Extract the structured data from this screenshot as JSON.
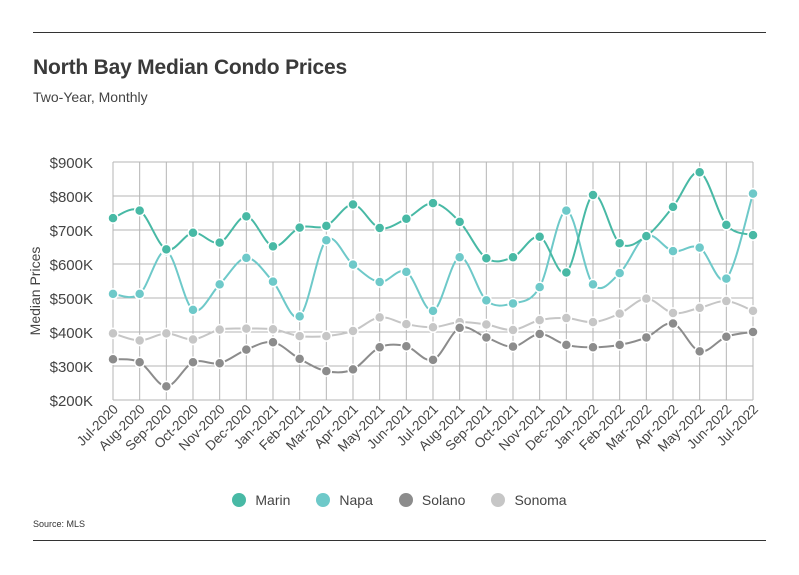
{
  "header": {
    "title": "North Bay Median Condo Prices",
    "subtitle": "Two-Year, Monthly"
  },
  "footer": {
    "source": "Source:  MLS"
  },
  "chart_data": {
    "type": "line",
    "title": "North Bay Median Condo Prices",
    "subtitle": "Two-Year, Monthly",
    "xlabel": "",
    "ylabel": "Median Prices",
    "ylim": [
      200000,
      900000
    ],
    "yticks": [
      200000,
      300000,
      400000,
      500000,
      600000,
      700000,
      800000,
      900000
    ],
    "ytick_labels": [
      "$200K",
      "$300K",
      "$400K",
      "$500K",
      "$600K",
      "$700K",
      "$800K",
      "$900K"
    ],
    "grid": true,
    "legend_position": "bottom-center",
    "categories": [
      "Jul-2020",
      "Aug-2020",
      "Sep-2020",
      "Oct-2020",
      "Nov-2020",
      "Dec-2020",
      "Jan-2021",
      "Feb-2021",
      "Mar-2021",
      "Apr-2021",
      "May-2021",
      "Jun-2021",
      "Jul-2021",
      "Aug-2021",
      "Sep-2021",
      "Oct-2021",
      "Nov-2021",
      "Dec-2021",
      "Jan-2022",
      "Feb-2022",
      "Mar-2022",
      "Apr-2022",
      "May-2022",
      "Jun-2022",
      "Jul-2022"
    ],
    "series": [
      {
        "name": "Marin",
        "color": "#48b9a5",
        "values": [
          735000,
          757000,
          643000,
          692000,
          663000,
          740000,
          652000,
          707000,
          712000,
          775000,
          706000,
          733000,
          779000,
          724000,
          617000,
          620000,
          680000,
          575000,
          803000,
          661000,
          682000,
          768000,
          870000,
          715000,
          685000
        ]
      },
      {
        "name": "Napa",
        "color": "#6ec9c9",
        "values": [
          512000,
          512000,
          638000,
          465000,
          540000,
          618000,
          548000,
          446000,
          670000,
          598000,
          547000,
          577000,
          462000,
          620000,
          493000,
          484000,
          532000,
          757000,
          540000,
          573000,
          683000,
          638000,
          648000,
          557000,
          807000
        ]
      },
      {
        "name": "Solano",
        "color": "#8c8c8c",
        "values": [
          320000,
          311000,
          240000,
          311000,
          308000,
          348000,
          370000,
          321000,
          285000,
          290000,
          355000,
          358000,
          318000,
          412000,
          384000,
          357000,
          394000,
          362000,
          355000,
          362000,
          384000,
          425000,
          343000,
          386000,
          400000
        ]
      },
      {
        "name": "Sonoma",
        "color": "#c6c6c6",
        "values": [
          396000,
          375000,
          396000,
          378000,
          407000,
          410000,
          408000,
          388000,
          388000,
          403000,
          443000,
          423000,
          414000,
          429000,
          422000,
          406000,
          435000,
          441000,
          429000,
          454000,
          498000,
          456000,
          471000,
          491000,
          462000
        ]
      }
    ]
  }
}
